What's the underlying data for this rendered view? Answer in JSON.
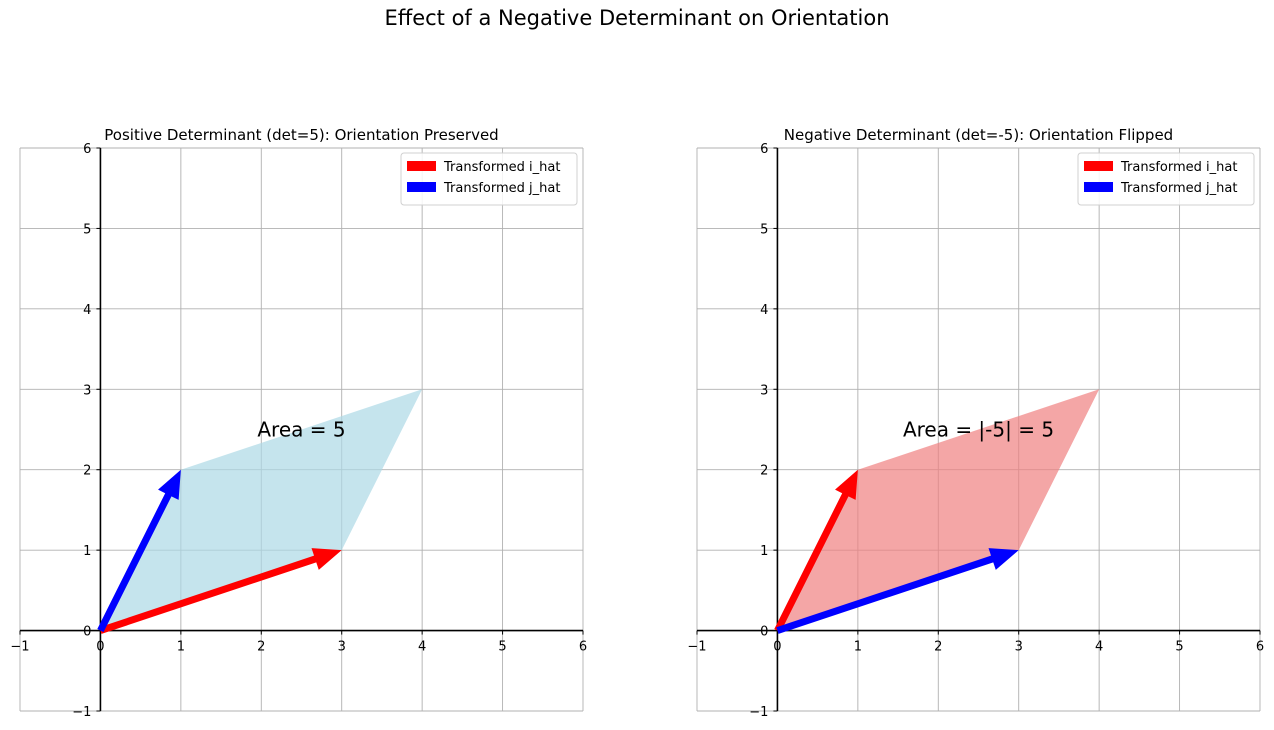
{
  "figure": {
    "title": "Effect of a Negative Determinant on Orientation"
  },
  "chart_data": [
    {
      "type": "vector_plot",
      "title": "Positive Determinant (det=5): Orientation Preserved",
      "xlim": [
        -1,
        6
      ],
      "ylim": [
        -1,
        6
      ],
      "xticks": [
        -1,
        0,
        1,
        2,
        3,
        4,
        5,
        6
      ],
      "yticks": [
        -1,
        0,
        1,
        2,
        3,
        4,
        5,
        6
      ],
      "grid": true,
      "legend_position": "top-right",
      "polygon": {
        "points": [
          [
            0,
            0
          ],
          [
            3,
            1
          ],
          [
            4,
            3
          ],
          [
            1,
            2
          ]
        ],
        "color": "#add8e6"
      },
      "vectors": [
        {
          "name": "Transformed i_hat",
          "from": [
            0,
            0
          ],
          "to": [
            3,
            1
          ],
          "color": "#ff0000"
        },
        {
          "name": "Transformed j_hat",
          "from": [
            0,
            0
          ],
          "to": [
            1,
            2
          ],
          "color": "#0000ff"
        }
      ],
      "annotation": {
        "text": "Area = 5",
        "x": 2.5,
        "y": 2.5
      }
    },
    {
      "type": "vector_plot",
      "title": "Negative Determinant (det=-5): Orientation Flipped",
      "xlim": [
        -1,
        6
      ],
      "ylim": [
        -1,
        6
      ],
      "xticks": [
        -1,
        0,
        1,
        2,
        3,
        4,
        5,
        6
      ],
      "yticks": [
        -1,
        0,
        1,
        2,
        3,
        4,
        5,
        6
      ],
      "grid": true,
      "legend_position": "top-right",
      "polygon": {
        "points": [
          [
            0,
            0
          ],
          [
            1,
            2
          ],
          [
            4,
            3
          ],
          [
            3,
            1
          ]
        ],
        "color": "#f08080"
      },
      "vectors": [
        {
          "name": "Transformed i_hat",
          "from": [
            0,
            0
          ],
          "to": [
            1,
            2
          ],
          "color": "#ff0000"
        },
        {
          "name": "Transformed j_hat",
          "from": [
            0,
            0
          ],
          "to": [
            3,
            1
          ],
          "color": "#0000ff"
        }
      ],
      "annotation": {
        "text": "Area = |-5| = 5",
        "x": 2.5,
        "y": 2.5
      }
    }
  ]
}
